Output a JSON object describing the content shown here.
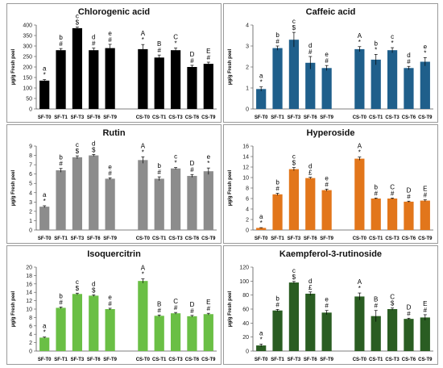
{
  "ylabel": "μg/g Fresh peel",
  "colors": {
    "black": "#000000",
    "blue": "#1f5f8b",
    "gray": "#8c8c8c",
    "orange": "#e2761b",
    "lightgreen": "#6abf45",
    "darkgreen": "#2a5d22"
  },
  "chart_data": [
    {
      "type": "bar",
      "title": "Chlorogenic acid",
      "color": "#000000",
      "ylabel": "μg/g Fresh peel",
      "ylim": [
        0,
        400
      ],
      "yticks": [
        0,
        50,
        100,
        150,
        200,
        250,
        300,
        350,
        400
      ],
      "categories": [
        "SF-T0",
        "SF-T1",
        "SF-T3",
        "SF-T6",
        "SF-T9",
        "",
        "CS-T0",
        "CS-T1",
        "CS-T3",
        "CS-T6",
        "CS-T9"
      ],
      "values": [
        135,
        280,
        385,
        280,
        290,
        null,
        285,
        245,
        280,
        200,
        215
      ],
      "errors": [
        5,
        8,
        5,
        10,
        18,
        null,
        22,
        12,
        10,
        8,
        8
      ],
      "letters": [
        "a",
        "b",
        "c",
        "d",
        "e",
        "",
        "A",
        "B",
        "C",
        "D",
        "E"
      ],
      "symbols": [
        "*",
        "#",
        "$",
        "#",
        "#",
        "",
        "*",
        "#",
        "*",
        "#",
        "#"
      ]
    },
    {
      "type": "bar",
      "title": "Caffeic acid",
      "color": "#1f5f8b",
      "ylabel": "μg/g Fresh peel",
      "ylim": [
        0,
        4
      ],
      "yticks": [
        0,
        1,
        2,
        3,
        4
      ],
      "categories": [
        "SF-T0",
        "SF-T1",
        "SF-T3",
        "SF-T6",
        "SF-T9",
        "",
        "CS-T0",
        "CS-T1",
        "CS-T3",
        "CS-T6",
        "CS-T9"
      ],
      "values": [
        0.95,
        2.9,
        3.3,
        2.2,
        1.95,
        null,
        2.85,
        2.35,
        2.8,
        1.95,
        2.25
      ],
      "errors": [
        0.1,
        0.1,
        0.35,
        0.3,
        0.12,
        null,
        0.12,
        0.25,
        0.12,
        0.08,
        0.2
      ],
      "letters": [
        "a",
        "b",
        "c",
        "d",
        "e",
        "",
        "A",
        "b",
        "c",
        "d",
        "e"
      ],
      "symbols": [
        "*",
        "#",
        "$",
        "#",
        "#",
        "",
        "*",
        "*",
        "*",
        "#",
        "*"
      ]
    },
    {
      "type": "bar",
      "title": "Rutin",
      "color": "#8c8c8c",
      "ylabel": "μg/g Fresh peel",
      "ylim": [
        0,
        9
      ],
      "yticks": [
        0,
        1,
        2,
        3,
        4,
        5,
        6,
        7,
        8,
        9
      ],
      "categories": [
        "SF-T0",
        "SF-T1",
        "SF-T3",
        "SF-T6",
        "SF-T9",
        "",
        "CS-T0",
        "CS-T1",
        "CS-T3",
        "CS-T6",
        "CS-T9"
      ],
      "values": [
        2.5,
        6.4,
        7.8,
        8.0,
        5.5,
        null,
        7.5,
        5.5,
        6.6,
        5.8,
        6.3
      ],
      "errors": [
        0.1,
        0.2,
        0.15,
        0.1,
        0.1,
        null,
        0.35,
        0.2,
        0.1,
        0.15,
        0.35
      ],
      "letters": [
        "a",
        "b",
        "c",
        "d",
        "e",
        "",
        "A",
        "b",
        "c",
        "D",
        "e"
      ],
      "symbols": [
        "*",
        "#",
        "$",
        "$",
        "#",
        "",
        "*",
        "#",
        "*",
        "#",
        "*"
      ]
    },
    {
      "type": "bar",
      "title": "Hyperoside",
      "color": "#e2761b",
      "ylabel": "μg/g Fresh peel",
      "ylim": [
        0,
        16
      ],
      "yticks": [
        0,
        2,
        4,
        6,
        8,
        10,
        12,
        14,
        16
      ],
      "categories": [
        "SF-T0",
        "SF-T1",
        "SF-T3",
        "SF-T6",
        "SF-T9",
        "",
        "CS-T0",
        "CS-T1",
        "CS-T3",
        "CS-T6",
        "CS-T9"
      ],
      "values": [
        0.4,
        6.8,
        11.6,
        9.9,
        7.6,
        null,
        13.6,
        6.0,
        6.0,
        5.4,
        5.6
      ],
      "errors": [
        0.05,
        0.2,
        0.3,
        0.15,
        0.2,
        null,
        0.3,
        0.1,
        0.1,
        0.1,
        0.15
      ],
      "letters": [
        "a",
        "b",
        "c",
        "d",
        "e",
        "",
        "A",
        "b",
        "C",
        "D",
        "E"
      ],
      "symbols": [
        "*",
        "#",
        "$",
        "£",
        "#",
        "",
        "*",
        "#",
        "#",
        "#",
        "#"
      ]
    },
    {
      "type": "bar",
      "title": "Isoquercitrin",
      "color": "#6abf45",
      "ylabel": "μg/g Fresh peel",
      "ylim": [
        0,
        20
      ],
      "yticks": [
        0,
        2,
        4,
        6,
        8,
        10,
        12,
        14,
        16,
        18,
        20
      ],
      "categories": [
        "SF-T0",
        "SF-T1",
        "SF-T3",
        "SF-T6",
        "SF-T9",
        "",
        "CS-T0",
        "CS-T1",
        "CS-T3",
        "CS-T6",
        "CS-T9"
      ],
      "values": [
        3.2,
        10.3,
        13.6,
        13.2,
        10.0,
        null,
        16.7,
        8.4,
        9.0,
        8.3,
        8.8
      ],
      "errors": [
        0.15,
        0.2,
        0.2,
        0.2,
        0.2,
        null,
        0.5,
        0.2,
        0.2,
        0.2,
        0.2
      ],
      "letters": [
        "a",
        "b",
        "c",
        "d",
        "e",
        "",
        "A",
        "B",
        "C",
        "D",
        "E"
      ],
      "symbols": [
        "*",
        "#",
        "$",
        "$",
        "#",
        "",
        "*",
        "#",
        "#",
        "#",
        "#"
      ]
    },
    {
      "type": "bar",
      "title": "Kaempferol-3-rutinoside",
      "color": "#2a5d22",
      "ylabel": "μg/g Fresh peel",
      "ylim": [
        0,
        120
      ],
      "yticks": [
        0,
        20,
        40,
        60,
        80,
        100,
        120
      ],
      "categories": [
        "SF-T0",
        "SF-T1",
        "SF-T3",
        "SF-T6",
        "SF-T9",
        "",
        "CS-T0",
        "CS-T1",
        "CS-T3",
        "CS-T6",
        "CS-T9"
      ],
      "values": [
        8,
        58,
        98,
        82,
        55,
        null,
        78,
        50,
        60,
        46,
        48
      ],
      "errors": [
        2,
        1.5,
        1.5,
        2.5,
        3,
        null,
        5,
        8,
        1.5,
        1,
        4
      ],
      "letters": [
        "a",
        "b",
        "c",
        "d",
        "e",
        "",
        "A",
        "B",
        "C",
        "D",
        "E"
      ],
      "symbols": [
        "*",
        "#",
        "$",
        "£",
        "#",
        "",
        "*",
        "#",
        "$",
        "#",
        "#"
      ]
    }
  ]
}
